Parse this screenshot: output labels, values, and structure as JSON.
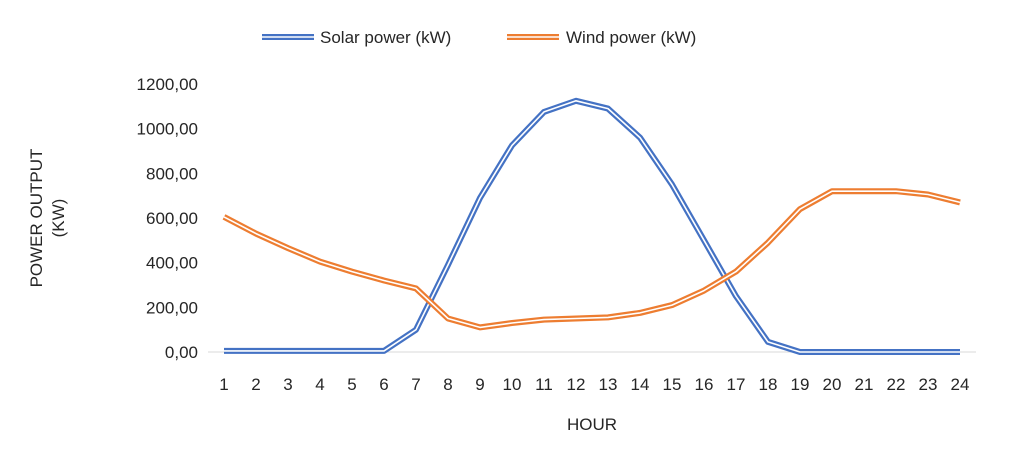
{
  "chart_data": {
    "type": "line",
    "title": "",
    "xlabel": "HOUR",
    "ylabel_lines": [
      "POWER OUTPUT",
      "(KW)"
    ],
    "x": [
      1,
      2,
      3,
      4,
      5,
      6,
      7,
      8,
      9,
      10,
      11,
      12,
      13,
      14,
      15,
      16,
      17,
      18,
      19,
      20,
      21,
      22,
      23,
      24
    ],
    "x_tick_labels": [
      "1",
      "2",
      "3",
      "4",
      "5",
      "6",
      "7",
      "8",
      "9",
      "10",
      "11",
      "12",
      "13",
      "14",
      "15",
      "16",
      "17",
      "18",
      "19",
      "20",
      "21",
      "22",
      "23",
      "24"
    ],
    "ylim": [
      0,
      1200
    ],
    "y_ticks": [
      0,
      200,
      400,
      600,
      800,
      1000,
      1200
    ],
    "y_tick_labels": [
      "0,00",
      "200,00",
      "400,00",
      "600,00",
      "800,00",
      "1000,00",
      "1200,00"
    ],
    "grid": false,
    "legend_position": "top-center",
    "series": [
      {
        "name": "Solar power (kW)",
        "color": "#4472C4",
        "values": [
          5,
          5,
          5,
          5,
          5,
          5,
          100,
          390,
          690,
          925,
          1075,
          1125,
          1090,
          960,
          750,
          500,
          250,
          45,
          0,
          0,
          0,
          0,
          0,
          0
        ]
      },
      {
        "name": "Wind power  (kW)",
        "color": "#ED7D31",
        "values": [
          605,
          530,
          465,
          405,
          360,
          320,
          285,
          150,
          110,
          130,
          145,
          150,
          155,
          175,
          210,
          275,
          360,
          490,
          640,
          720,
          720,
          720,
          705,
          670
        ]
      }
    ]
  }
}
